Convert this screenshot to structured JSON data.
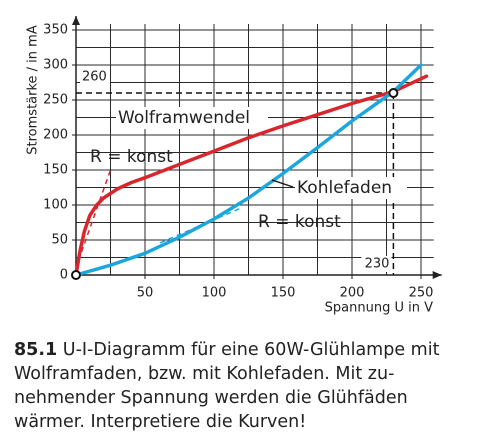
{
  "chart_data": {
    "type": "line",
    "y_label": "Stromstärke / in mA",
    "x_label": "Spannung U in V",
    "xlim": [
      0,
      265
    ],
    "ylim": [
      0,
      370
    ],
    "xticks": [
      0,
      50,
      100,
      150,
      200,
      250
    ],
    "yticks": [
      0,
      50,
      100,
      150,
      200,
      250,
      300,
      350
    ],
    "xgrid": [
      25,
      50,
      75,
      100,
      125,
      150,
      175,
      200,
      225,
      250
    ],
    "ygrid": [
      25,
      50,
      75,
      100,
      125,
      150,
      175,
      200,
      225,
      250,
      275,
      300,
      325,
      350
    ],
    "series": [
      {
        "name": "Wolframwendel",
        "color": "#d9262c",
        "x": [
          0,
          3,
          6,
          10,
          15,
          20,
          30,
          40,
          50,
          75,
          100,
          125,
          150,
          175,
          200,
          230,
          254
        ],
        "values": [
          0,
          35,
          62,
          85,
          100,
          110,
          123,
          132,
          139,
          158,
          177,
          196,
          213,
          229,
          245,
          262,
          284
        ]
      },
      {
        "name": "Kohlefaden",
        "color": "#1ba6dd",
        "x": [
          0,
          25,
          50,
          75,
          100,
          125,
          150,
          175,
          200,
          230,
          250
        ],
        "values": [
          0,
          14,
          31,
          54,
          80,
          110,
          145,
          182,
          220,
          262,
          300
        ]
      }
    ],
    "tangents": [
      {
        "label": "R = konst",
        "color": "#d9262c",
        "x": [
          4,
          25
        ],
        "values": [
          33,
          150
        ]
      },
      {
        "label": "R = konst",
        "color": "#1ba6dd",
        "x": [
          61,
          120
        ],
        "values": [
          46,
          96
        ]
      }
    ],
    "reference": {
      "x": 230,
      "y": 260,
      "x_label": "230",
      "y_label": "260"
    }
  },
  "caption": {
    "number": "85.1",
    "lines": [
      "U-I-Diagramm für eine 60W-Glühlampe mit",
      "Wolframfaden, bzw. mit Kohlefaden. Mit zu-",
      "nehmender Spannung werden die Glühfäden",
      "wärmer. Interpretiere die Kurven!"
    ]
  }
}
